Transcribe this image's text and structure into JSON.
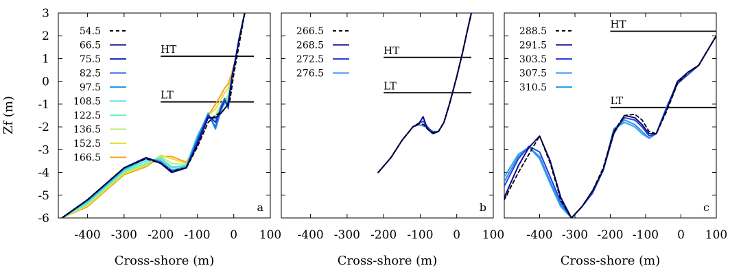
{
  "figure": {
    "ylabel": "Zf (m)",
    "y_ticks": [
      "-6",
      "-5",
      "-4",
      "-3",
      "-2",
      "-1",
      "0",
      "1",
      "2",
      "3"
    ]
  },
  "chart_data": [
    {
      "type": "line",
      "panel_label": "a",
      "xlabel": "Cross-shore (m)",
      "ylabel": "Zf (m)",
      "xlim": [
        -480,
        100
      ],
      "ylim": [
        -6,
        3
      ],
      "x_ticks": [
        "-400",
        "-300",
        "-200",
        "-100",
        "0",
        "100"
      ],
      "legend_position": "top-left",
      "reference_lines": [
        {
          "label": "HT",
          "y": 1.1,
          "x": [
            -200,
            55
          ]
        },
        {
          "label": "LT",
          "y": -0.9,
          "x": [
            -200,
            55
          ]
        }
      ],
      "series": [
        {
          "name": "54.5",
          "color": "#000000",
          "dashed": true,
          "x": [
            -470,
            -400,
            -300,
            -240,
            -200,
            -170,
            -130,
            -100,
            -70,
            -50,
            -30,
            -20,
            -10,
            0,
            10,
            20,
            30
          ],
          "y": [
            -6.0,
            -5.2,
            -3.8,
            -3.4,
            -3.6,
            -3.95,
            -3.8,
            -2.9,
            -1.8,
            -1.5,
            -1.3,
            -1.1,
            -0.8,
            0.3,
            1.2,
            2.1,
            3.0
          ]
        },
        {
          "name": "66.5",
          "color": "#0a0a8c",
          "x": [
            -470,
            -400,
            -300,
            -240,
            -200,
            -170,
            -130,
            -100,
            -70,
            -50,
            -35,
            -25,
            -15,
            -5,
            5,
            15,
            30
          ],
          "y": [
            -6.0,
            -5.2,
            -3.8,
            -3.35,
            -3.6,
            -4.0,
            -3.8,
            -2.8,
            -1.6,
            -1.6,
            -1.4,
            -1.2,
            -1.0,
            0.2,
            1.0,
            1.9,
            3.0
          ]
        },
        {
          "name": "75.5",
          "color": "#1c2ec4",
          "x": [
            -470,
            -400,
            -300,
            -240,
            -200,
            -170,
            -130,
            -100,
            -70,
            -50,
            -35,
            -25,
            -15,
            -5,
            5,
            15,
            30
          ],
          "y": [
            -6.0,
            -5.2,
            -3.8,
            -3.35,
            -3.6,
            -4.0,
            -3.8,
            -2.7,
            -1.5,
            -1.8,
            -1.2,
            -0.85,
            -1.1,
            0.2,
            1.0,
            1.9,
            3.0
          ]
        },
        {
          "name": "82.5",
          "color": "#2a62e0",
          "x": [
            -470,
            -400,
            -300,
            -240,
            -200,
            -170,
            -130,
            -100,
            -70,
            -50,
            -35,
            -25,
            -15,
            -5,
            5,
            15,
            30
          ],
          "y": [
            -6.0,
            -5.2,
            -3.8,
            -3.35,
            -3.55,
            -3.95,
            -3.8,
            -2.6,
            -1.5,
            -2.0,
            -1.1,
            -0.75,
            -1.2,
            0.2,
            1.0,
            1.9,
            3.0
          ]
        },
        {
          "name": "97.5",
          "color": "#1e9be8",
          "x": [
            -470,
            -400,
            -300,
            -240,
            -200,
            -170,
            -130,
            -100,
            -70,
            -50,
            -35,
            -25,
            -15,
            -5,
            5,
            15,
            30
          ],
          "y": [
            -6.0,
            -5.25,
            -3.85,
            -3.4,
            -3.5,
            -3.9,
            -3.75,
            -2.5,
            -1.4,
            -2.1,
            -1.3,
            -0.9,
            -1.0,
            0.2,
            1.0,
            1.9,
            3.0
          ]
        },
        {
          "name": "108.5",
          "color": "#4fe0e8",
          "x": [
            -470,
            -400,
            -300,
            -240,
            -200,
            -170,
            -130,
            -100,
            -70,
            -50,
            -35,
            -25,
            -15,
            -5,
            5,
            15,
            30
          ],
          "y": [
            -6.0,
            -5.3,
            -3.9,
            -3.5,
            -3.4,
            -3.8,
            -3.7,
            -2.4,
            -1.5,
            -1.8,
            -1.2,
            -1.0,
            -0.8,
            0.2,
            1.0,
            1.9,
            3.0
          ]
        },
        {
          "name": "122.5",
          "color": "#6ef2b4",
          "x": [
            -470,
            -400,
            -300,
            -240,
            -200,
            -170,
            -130,
            -100,
            -70,
            -50,
            -35,
            -25,
            -15,
            -5,
            5,
            15,
            30
          ],
          "y": [
            -6.0,
            -5.35,
            -3.95,
            -3.6,
            -3.35,
            -3.75,
            -3.7,
            -2.4,
            -1.6,
            -1.7,
            -1.1,
            -0.9,
            -0.7,
            0.2,
            1.0,
            1.9,
            3.0
          ]
        },
        {
          "name": "136.5",
          "color": "#b2f07a",
          "x": [
            -470,
            -400,
            -300,
            -240,
            -200,
            -170,
            -130,
            -100,
            -70,
            -50,
            -35,
            -25,
            -15,
            -5,
            5,
            15,
            30
          ],
          "y": [
            -6.0,
            -5.4,
            -4.0,
            -3.65,
            -3.3,
            -3.6,
            -3.65,
            -2.5,
            -1.6,
            -1.5,
            -1.0,
            -0.8,
            -0.6,
            0.2,
            1.0,
            1.9,
            3.0
          ]
        },
        {
          "name": "152.5",
          "color": "#e6e034",
          "x": [
            -470,
            -400,
            -300,
            -240,
            -200,
            -170,
            -130,
            -100,
            -70,
            -50,
            -35,
            -25,
            -15,
            -5,
            5,
            15,
            30
          ],
          "y": [
            -6.0,
            -5.45,
            -4.05,
            -3.7,
            -3.25,
            -3.4,
            -3.6,
            -2.6,
            -1.5,
            -1.2,
            -0.8,
            -0.5,
            -0.3,
            0.3,
            1.0,
            1.9,
            3.0
          ]
        },
        {
          "name": "166.5",
          "color": "#f5a21e",
          "x": [
            -470,
            -400,
            -300,
            -240,
            -200,
            -170,
            -130,
            -100,
            -70,
            -50,
            -35,
            -25,
            -15,
            -5,
            5,
            15,
            30
          ],
          "y": [
            -6.0,
            -5.5,
            -4.1,
            -3.75,
            -3.3,
            -3.3,
            -3.55,
            -2.7,
            -1.5,
            -1.0,
            -0.6,
            -0.3,
            -0.1,
            0.4,
            1.0,
            1.9,
            3.0
          ]
        }
      ]
    },
    {
      "type": "line",
      "panel_label": "b",
      "xlabel": "Cross-shore (m)",
      "xlim": [
        -480,
        100
      ],
      "ylim": [
        -6,
        3
      ],
      "x_ticks": [
        "-400",
        "-300",
        "-200",
        "-100",
        "0",
        "100"
      ],
      "legend_position": "top-left",
      "reference_lines": [
        {
          "label": "HT",
          "y": 1.05,
          "x": [
            -200,
            40
          ]
        },
        {
          "label": "LT",
          "y": -0.5,
          "x": [
            -200,
            40
          ]
        }
      ],
      "series": [
        {
          "name": "266.5",
          "color": "#000000",
          "dashed": true,
          "x": [
            -215,
            -180,
            -150,
            -120,
            -105,
            -90,
            -80,
            -65,
            -50,
            -35,
            -20,
            -10,
            0,
            15,
            30,
            40
          ],
          "y": [
            -4.0,
            -3.35,
            -2.6,
            -2.0,
            -1.85,
            -1.9,
            -2.1,
            -2.25,
            -2.2,
            -1.8,
            -1.0,
            -0.4,
            0.2,
            1.2,
            2.3,
            3.0
          ]
        },
        {
          "name": "268.5",
          "color": "#0a0a8c",
          "x": [
            -215,
            -180,
            -150,
            -120,
            -105,
            -92,
            -80,
            -65,
            -50,
            -35,
            -20,
            -10,
            0,
            15,
            30,
            40
          ],
          "y": [
            -4.0,
            -3.35,
            -2.6,
            -2.0,
            -1.9,
            -1.55,
            -2.1,
            -2.3,
            -2.2,
            -1.8,
            -1.0,
            -0.4,
            0.2,
            1.2,
            2.3,
            3.0
          ]
        },
        {
          "name": "272.5",
          "color": "#2a3fd8",
          "x": [
            -215,
            -180,
            -150,
            -120,
            -105,
            -92,
            -80,
            -65,
            -50,
            -35,
            -20,
            -10,
            0,
            15,
            30,
            40
          ],
          "y": [
            -4.0,
            -3.35,
            -2.6,
            -2.0,
            -1.85,
            -1.75,
            -2.0,
            -2.25,
            -2.2,
            -1.8,
            -1.0,
            -0.4,
            0.2,
            1.2,
            2.3,
            3.0
          ]
        },
        {
          "name": "276.5",
          "color": "#3a8cf0",
          "x": [
            -215,
            -180,
            -150,
            -120,
            -105,
            -92,
            -80,
            -65,
            -50,
            -35,
            -20,
            -10,
            0,
            15,
            30,
            40
          ],
          "y": [
            -4.0,
            -3.35,
            -2.6,
            -2.0,
            -1.9,
            -1.95,
            -2.05,
            -2.2,
            -2.2,
            -1.8,
            -1.0,
            -0.4,
            0.2,
            1.2,
            2.3,
            3.0
          ]
        }
      ]
    },
    {
      "type": "line",
      "panel_label": "c",
      "xlabel": "Cross-shore (m)",
      "xlim": [
        -500,
        100
      ],
      "ylim": [
        -6,
        3
      ],
      "x_ticks": [
        "-400",
        "-300",
        "-200",
        "-100",
        "0",
        "100"
      ],
      "legend_position": "top-left",
      "reference_lines": [
        {
          "label": "HT",
          "y": 2.2,
          "x": [
            -200,
            100
          ]
        },
        {
          "label": "LT",
          "y": -1.15,
          "x": [
            -200,
            100
          ]
        }
      ],
      "series": [
        {
          "name": "288.5",
          "color": "#000000",
          "dashed": true,
          "x": [
            -500,
            -460,
            -430,
            -400,
            -370,
            -340,
            -310,
            -280,
            -250,
            -220,
            -190,
            -160,
            -130,
            -110,
            -90,
            -70,
            -40,
            -10,
            20,
            50,
            100
          ],
          "y": [
            -5.2,
            -4.0,
            -3.2,
            -2.4,
            -3.6,
            -5.2,
            -6.0,
            -5.5,
            -4.8,
            -3.8,
            -2.2,
            -1.5,
            -1.45,
            -1.7,
            -2.2,
            -2.3,
            -1.3,
            -0.1,
            0.4,
            0.7,
            2.0
          ]
        },
        {
          "name": "291.5",
          "color": "#0a0a8c",
          "x": [
            -500,
            -460,
            -430,
            -400,
            -370,
            -340,
            -310,
            -280,
            -250,
            -220,
            -190,
            -160,
            -130,
            -110,
            -90,
            -70,
            -40,
            -10,
            20,
            50,
            100
          ],
          "y": [
            -5.1,
            -3.7,
            -2.9,
            -2.4,
            -3.5,
            -5.1,
            -6.0,
            -5.5,
            -4.8,
            -3.9,
            -2.3,
            -1.5,
            -1.6,
            -1.9,
            -2.3,
            -2.3,
            -1.2,
            0.0,
            0.4,
            0.7,
            2.0
          ]
        },
        {
          "name": "303.5",
          "color": "#2a3fd8",
          "x": [
            -500,
            -460,
            -430,
            -400,
            -370,
            -340,
            -310,
            -280,
            -250,
            -220,
            -190,
            -160,
            -130,
            -110,
            -90,
            -70,
            -40,
            -10,
            20,
            50,
            100
          ],
          "y": [
            -4.6,
            -3.4,
            -2.85,
            -3.1,
            -4.2,
            -5.3,
            -6.0,
            -5.5,
            -4.9,
            -3.9,
            -2.2,
            -1.6,
            -1.7,
            -2.0,
            -2.4,
            -2.3,
            -1.2,
            -0.1,
            0.3,
            0.7,
            2.0
          ]
        },
        {
          "name": "307.5",
          "color": "#3a8cf0",
          "x": [
            -500,
            -460,
            -430,
            -400,
            -370,
            -340,
            -310,
            -280,
            -250,
            -220,
            -190,
            -160,
            -130,
            -110,
            -90,
            -70,
            -40,
            -10,
            20,
            50,
            100
          ],
          "y": [
            -4.4,
            -3.3,
            -2.9,
            -3.3,
            -4.4,
            -5.4,
            -6.0,
            -5.5,
            -4.9,
            -3.9,
            -2.1,
            -1.7,
            -1.9,
            -2.2,
            -2.5,
            -2.3,
            -1.1,
            -0.1,
            0.3,
            0.7,
            2.0
          ]
        },
        {
          "name": "310.5",
          "color": "#1ea8e8",
          "x": [
            -500,
            -460,
            -430,
            -400,
            -370,
            -340,
            -310,
            -280,
            -250,
            -220,
            -190,
            -160,
            -130,
            -110,
            -90,
            -70,
            -40,
            -10,
            20,
            50,
            100
          ],
          "y": [
            -4.2,
            -3.2,
            -2.9,
            -3.4,
            -4.5,
            -5.5,
            -6.0,
            -5.5,
            -4.9,
            -3.9,
            -2.1,
            -1.8,
            -2.0,
            -2.3,
            -2.5,
            -2.3,
            -1.1,
            -0.1,
            0.3,
            0.7,
            2.0
          ]
        }
      ]
    }
  ]
}
